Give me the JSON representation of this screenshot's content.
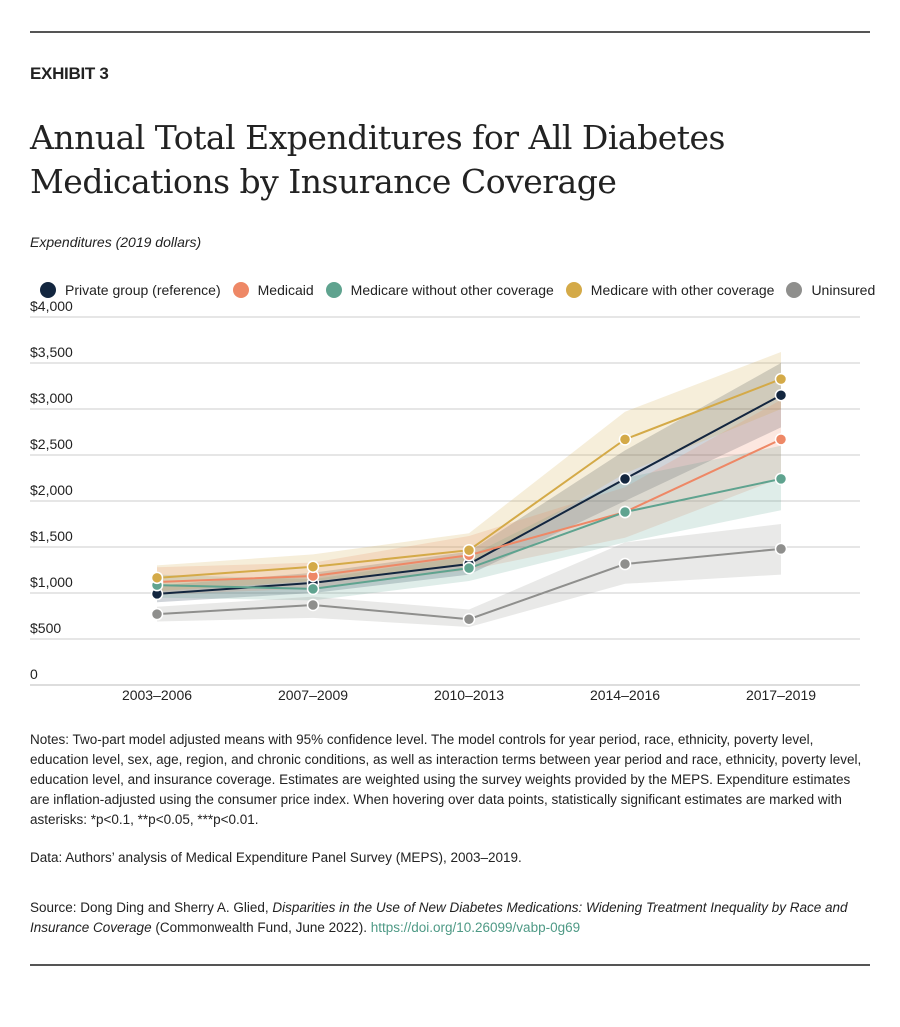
{
  "header": {
    "exhibit": "EXHIBIT 3",
    "title": "Annual Total Expenditures for All Diabetes Medications by Insurance Coverage",
    "subtitle": "Expenditures (2019 dollars)"
  },
  "chart_data": {
    "type": "line",
    "title": "Annual Total Expenditures for All Diabetes Medications by Insurance Coverage",
    "ylabel": "Expenditures (2019 dollars)",
    "categories": [
      "2003–2006",
      "2007–2009",
      "2010–2013",
      "2014–2016",
      "2017–2019"
    ],
    "ylim": [
      0,
      4000
    ],
    "yticks": [
      0,
      500,
      1000,
      1500,
      2000,
      2500,
      3000,
      3500,
      4000
    ],
    "ytick_labels": [
      "0",
      "$500",
      "$1,000",
      "$1,500",
      "$2,000",
      "$2,500",
      "$3,000",
      "$3,500",
      "$4,000"
    ],
    "grid": true,
    "legend_position": "top",
    "series": [
      {
        "name": "Private group (reference)",
        "color": "#13263f",
        "values": [
          990,
          1110,
          1315,
          2240,
          3150
        ],
        "lower": [
          900,
          1000,
          1200,
          2000,
          2800
        ],
        "upper": [
          1080,
          1220,
          1450,
          2550,
          3500
        ]
      },
      {
        "name": "Medicaid",
        "color": "#ee8866",
        "values": [
          1120,
          1185,
          1410,
          1880,
          2670
        ],
        "lower": [
          980,
          1050,
          1250,
          1600,
          2250
        ],
        "upper": [
          1280,
          1330,
          1620,
          2150,
          3100
        ]
      },
      {
        "name": "Medicare without other coverage",
        "color": "#5fa38f",
        "values": [
          1085,
          1045,
          1270,
          1880,
          2240
        ],
        "lower": [
          950,
          920,
          1130,
          1550,
          1900
        ],
        "upper": [
          1200,
          1150,
          1400,
          2250,
          2600
        ]
      },
      {
        "name": "Medicare with other coverage",
        "color": "#d4aa48",
        "values": [
          1165,
          1285,
          1465,
          2670,
          3325
        ],
        "lower": [
          1020,
          1130,
          1300,
          2300,
          3000
        ],
        "upper": [
          1300,
          1420,
          1650,
          2970,
          3620
        ]
      },
      {
        "name": "Uninsured",
        "color": "#8f8f8d",
        "values": [
          770,
          870,
          715,
          1315,
          1480
        ],
        "lower": [
          690,
          730,
          630,
          1100,
          1200
        ],
        "upper": [
          850,
          960,
          820,
          1550,
          1750
        ]
      }
    ]
  },
  "notes": {
    "notes": "Notes: Two-part model adjusted means with 95% confidence level. The model controls for year period, race, ethnicity, poverty level, education level, sex, age, region, and chronic conditions, as well as interaction terms between year period and race, ethnicity, poverty level, education level, and insurance coverage. Estimates are weighted using the survey weights provided by the MEPS. Expenditure estimates are inflation-adjusted using the consumer price index. When hovering over data points, statistically significant estimates are marked with asterisks: *p<0.1, **p<0.05, ***p<0.01.",
    "data": "Data: Authors’ analysis of Medical Expenditure Panel Survey (MEPS), 2003–2019.",
    "source_prefix": "Source: Dong Ding and Sherry A. Glied, ",
    "source_title": "Disparities in the Use of New Diabetes Medications: Widening Treatment Inequality by Race and Insurance Coverage",
    "source_suffix": " (Commonwealth Fund, June 2022). ",
    "source_link": "https://doi.org/10.26099/vabp-0g69"
  }
}
